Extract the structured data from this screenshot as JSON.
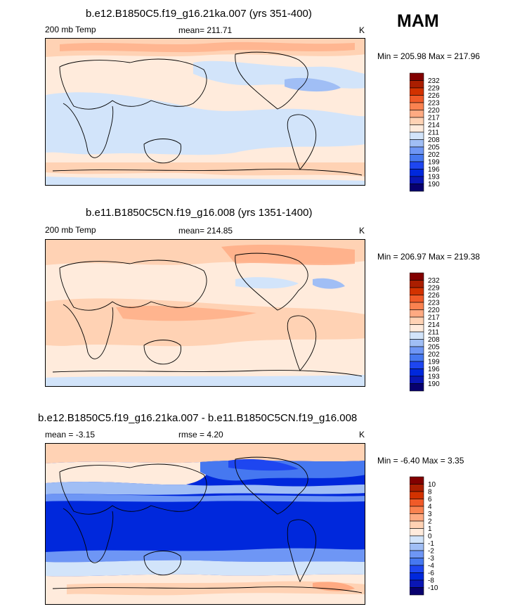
{
  "season": "MAM",
  "colors": {
    "abs_palette": [
      "#08006E",
      "#0A16B4",
      "#0028DC",
      "#1E46F0",
      "#4678F0",
      "#6E96F5",
      "#A0BEF5",
      "#D2E4FA",
      "#FFEBDC",
      "#FFD2B4",
      "#FFAA82",
      "#FA8250",
      "#F05A28",
      "#D23200",
      "#AA1E00",
      "#820000"
    ],
    "diff_palette": [
      "#08006E",
      "#0A16B4",
      "#0028DC",
      "#1E46F0",
      "#4678F0",
      "#6E96F5",
      "#A0BEF5",
      "#D2E4FA",
      "#FFEBDC",
      "#FFD2B4",
      "#FFAA82",
      "#FA8250",
      "#F05A28",
      "#D23200",
      "#AA1E00",
      "#820000"
    ]
  },
  "panels": [
    {
      "title": "b.e12.B1850C5.f19_g16.21ka.007 (yrs 351-400)",
      "left_label": "200 mb Temp",
      "center_label": "mean= 211.71",
      "units": "K",
      "minmax": "Min = 205.98 Max = 217.96",
      "colorbar": {
        "labels": [
          "232",
          "229",
          "226",
          "223",
          "220",
          "217",
          "214",
          "211",
          "208",
          "205",
          "202",
          "199",
          "196",
          "193",
          "190"
        ]
      }
    },
    {
      "title": "b.e11.B1850C5CN.f19_g16.008 (yrs 1351-1400)",
      "left_label": "200 mb Temp",
      "center_label": "mean= 214.85",
      "units": "K",
      "minmax": "Min = 206.97 Max = 219.38",
      "colorbar": {
        "labels": [
          "232",
          "229",
          "226",
          "223",
          "220",
          "217",
          "214",
          "211",
          "208",
          "205",
          "202",
          "199",
          "196",
          "193",
          "190"
        ]
      }
    },
    {
      "title": "b.e12.B1850C5.f19_g16.21ka.007 - b.e11.B1850C5CN.f19_g16.008",
      "left_label": "mean =  -3.15",
      "center_label": "rmse =   4.20",
      "units": "K",
      "minmax": "Min =  -6.40 Max =   3.35",
      "colorbar": {
        "labels": [
          "10",
          "8",
          "6",
          "4",
          "3",
          "2",
          "1",
          "0",
          "-1",
          "-2",
          "-3",
          "-4",
          "-6",
          "-8",
          "-10"
        ]
      }
    }
  ],
  "chart_data": [
    {
      "type": "heatmap",
      "title": "b.e12.B1850C5.f19_g16.21ka.007 (yrs 351-400)",
      "variable": "200 mb Temp",
      "units": "K",
      "mean": 211.71,
      "min": 205.98,
      "max": 217.96,
      "levels": [
        190,
        193,
        196,
        199,
        202,
        205,
        208,
        211,
        214,
        217,
        220,
        223,
        226,
        229,
        232
      ]
    },
    {
      "type": "heatmap",
      "title": "b.e11.B1850C5CN.f19_g16.008 (yrs 1351-1400)",
      "variable": "200 mb Temp",
      "units": "K",
      "mean": 214.85,
      "min": 206.97,
      "max": 219.38,
      "levels": [
        190,
        193,
        196,
        199,
        202,
        205,
        208,
        211,
        214,
        217,
        220,
        223,
        226,
        229,
        232
      ]
    },
    {
      "type": "heatmap",
      "title": "b.e12.B1850C5.f19_g16.21ka.007 - b.e11.B1850C5CN.f19_g16.008",
      "units": "K",
      "mean": -3.15,
      "rmse": 4.2,
      "min": -6.4,
      "max": 3.35,
      "levels": [
        -10,
        -8,
        -6,
        -4,
        -3,
        -2,
        -1,
        0,
        1,
        2,
        3,
        4,
        6,
        8,
        10
      ]
    }
  ]
}
